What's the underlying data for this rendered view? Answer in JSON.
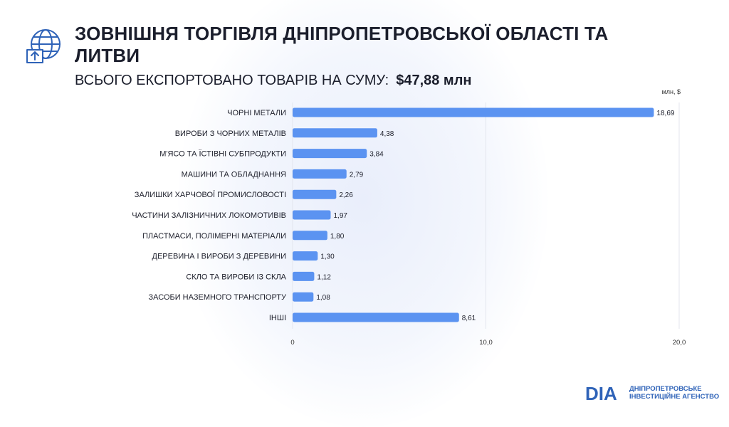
{
  "header": {
    "title": "ЗОВНІШНЯ ТОРГІВЛЯ ДНІПРОПЕТРОВСЬКОЇ ОБЛАСТІ ТА ЛИТВИ",
    "subtitle_label": "ВСЬОГО ЕКСПОРТОВАНО ТОВАРІВ НА СУМУ:",
    "subtitle_amount": "$47,88 млн",
    "icon": "globe-export-icon"
  },
  "logo": {
    "mark": "DIA",
    "line1": "ДНІПРОПЕТРОВСЬКЕ",
    "line2": "ІНВЕСТИЦІЙНЕ АГЕНСТВО",
    "color": "#2f63b8"
  },
  "chart_data": {
    "type": "bar",
    "orientation": "horizontal",
    "unit_label": "млн, $",
    "categories": [
      "ЧОРНІ МЕТАЛИ",
      "ВИРОБИ З ЧОРНИХ МЕТАЛІВ",
      "М'ЯСО ТА ЇСТІВНІ СУБПРОДУКТИ",
      "МАШИНИ ТА ОБЛАДНАННЯ",
      "ЗАЛИШКИ ХАРЧОВОЇ ПРОМИСЛОВОСТІ",
      "ЧАСТИНИ ЗАЛІЗНИЧНИХ ЛОКОМОТИВІВ",
      "ПЛАСТМАСИ, ПОЛІМЕРНІ МАТЕРІАЛИ",
      "ДЕРЕВИНА І ВИРОБИ З ДЕРЕВИНИ",
      "СКЛО ТА ВИРОБИ ІЗ СКЛА",
      "ЗАСОБИ НАЗЕМНОГО ТРАНСПОРТУ",
      "ІНШІ"
    ],
    "values": [
      18.69,
      4.38,
      3.84,
      2.79,
      2.26,
      1.97,
      1.8,
      1.3,
      1.12,
      1.08,
      8.61
    ],
    "value_labels": [
      "18,69",
      "4,38",
      "3,84",
      "2,79",
      "2,26",
      "1,97",
      "1,80",
      "1,30",
      "1,12",
      "1,08",
      "8,61"
    ],
    "xlim": [
      0,
      20
    ],
    "xticks": [
      0,
      10,
      20
    ],
    "xtick_labels": [
      "0",
      "10,0",
      "20,0"
    ],
    "grid": "vertical",
    "bar_color": "#5b93f1",
    "grid_color": "#e3e6ee"
  }
}
